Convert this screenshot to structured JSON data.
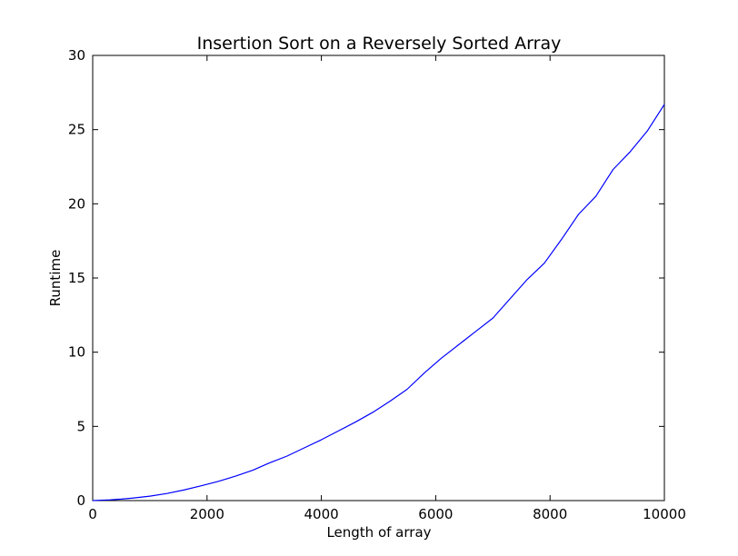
{
  "chart_data": {
    "type": "line",
    "title": "Insertion Sort on a Reversely Sorted Array",
    "xlabel": "Length of array",
    "ylabel": "Runtime",
    "xlim": [
      0,
      10000
    ],
    "ylim": [
      0,
      30
    ],
    "x_ticks": [
      0,
      2000,
      4000,
      6000,
      8000,
      10000
    ],
    "y_ticks": [
      0,
      5,
      10,
      15,
      20,
      25,
      30
    ],
    "x_tick_labels": [
      "0",
      "2000",
      "4000",
      "6000",
      "8000",
      "10000"
    ],
    "y_tick_labels": [
      "0",
      "5",
      "10",
      "15",
      "20",
      "25",
      "30"
    ],
    "grid": false,
    "legend": "none",
    "series": [
      {
        "color": "#0000ff",
        "x": [
          0,
          100,
          300,
          500,
          700,
          1000,
          1300,
          1600,
          1900,
          2200,
          2500,
          2800,
          3100,
          3400,
          3700,
          4000,
          4300,
          4600,
          4900,
          5200,
          5500,
          5800,
          6100,
          6400,
          6700,
          7000,
          7300,
          7600,
          7900,
          8200,
          8500,
          8800,
          9100,
          9400,
          9700,
          10000
        ],
        "y": [
          0,
          0.02,
          0.05,
          0.1,
          0.17,
          0.3,
          0.48,
          0.72,
          1.0,
          1.3,
          1.65,
          2.05,
          2.55,
          3.0,
          3.55,
          4.1,
          4.7,
          5.3,
          5.95,
          6.7,
          7.5,
          8.6,
          9.6,
          10.5,
          11.4,
          12.3,
          13.6,
          14.9,
          16.0,
          17.6,
          19.3,
          20.5,
          22.3,
          23.5,
          24.9,
          26.7
        ]
      }
    ]
  }
}
